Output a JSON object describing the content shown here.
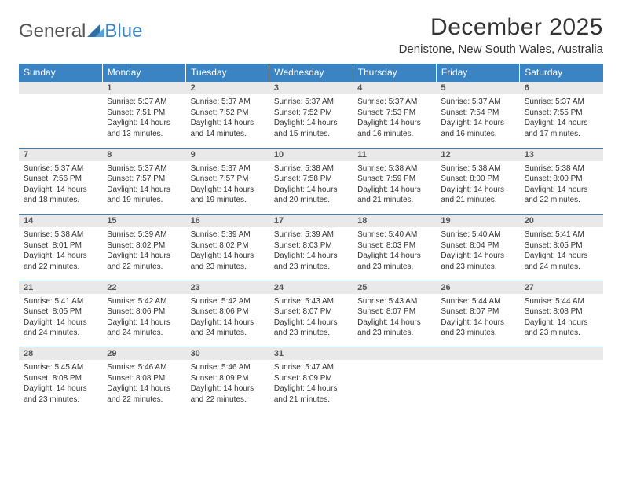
{
  "logo": {
    "general": "General",
    "blue": "Blue"
  },
  "title": "December 2025",
  "location": "Denistone, New South Wales, Australia",
  "colors": {
    "header_bg": "#3b84c4",
    "daynum_bg": "#e9e9e9",
    "text": "#333333",
    "logo_gray": "#555555",
    "logo_blue": "#3b84c4"
  },
  "day_headers": [
    "Sunday",
    "Monday",
    "Tuesday",
    "Wednesday",
    "Thursday",
    "Friday",
    "Saturday"
  ],
  "weeks": [
    [
      null,
      {
        "n": "1",
        "sr": "5:37 AM",
        "ss": "7:51 PM",
        "dl": "14 hours and 13 minutes."
      },
      {
        "n": "2",
        "sr": "5:37 AM",
        "ss": "7:52 PM",
        "dl": "14 hours and 14 minutes."
      },
      {
        "n": "3",
        "sr": "5:37 AM",
        "ss": "7:52 PM",
        "dl": "14 hours and 15 minutes."
      },
      {
        "n": "4",
        "sr": "5:37 AM",
        "ss": "7:53 PM",
        "dl": "14 hours and 16 minutes."
      },
      {
        "n": "5",
        "sr": "5:37 AM",
        "ss": "7:54 PM",
        "dl": "14 hours and 16 minutes."
      },
      {
        "n": "6",
        "sr": "5:37 AM",
        "ss": "7:55 PM",
        "dl": "14 hours and 17 minutes."
      }
    ],
    [
      {
        "n": "7",
        "sr": "5:37 AM",
        "ss": "7:56 PM",
        "dl": "14 hours and 18 minutes."
      },
      {
        "n": "8",
        "sr": "5:37 AM",
        "ss": "7:57 PM",
        "dl": "14 hours and 19 minutes."
      },
      {
        "n": "9",
        "sr": "5:37 AM",
        "ss": "7:57 PM",
        "dl": "14 hours and 19 minutes."
      },
      {
        "n": "10",
        "sr": "5:38 AM",
        "ss": "7:58 PM",
        "dl": "14 hours and 20 minutes."
      },
      {
        "n": "11",
        "sr": "5:38 AM",
        "ss": "7:59 PM",
        "dl": "14 hours and 21 minutes."
      },
      {
        "n": "12",
        "sr": "5:38 AM",
        "ss": "8:00 PM",
        "dl": "14 hours and 21 minutes."
      },
      {
        "n": "13",
        "sr": "5:38 AM",
        "ss": "8:00 PM",
        "dl": "14 hours and 22 minutes."
      }
    ],
    [
      {
        "n": "14",
        "sr": "5:38 AM",
        "ss": "8:01 PM",
        "dl": "14 hours and 22 minutes."
      },
      {
        "n": "15",
        "sr": "5:39 AM",
        "ss": "8:02 PM",
        "dl": "14 hours and 22 minutes."
      },
      {
        "n": "16",
        "sr": "5:39 AM",
        "ss": "8:02 PM",
        "dl": "14 hours and 23 minutes."
      },
      {
        "n": "17",
        "sr": "5:39 AM",
        "ss": "8:03 PM",
        "dl": "14 hours and 23 minutes."
      },
      {
        "n": "18",
        "sr": "5:40 AM",
        "ss": "8:03 PM",
        "dl": "14 hours and 23 minutes."
      },
      {
        "n": "19",
        "sr": "5:40 AM",
        "ss": "8:04 PM",
        "dl": "14 hours and 23 minutes."
      },
      {
        "n": "20",
        "sr": "5:41 AM",
        "ss": "8:05 PM",
        "dl": "14 hours and 24 minutes."
      }
    ],
    [
      {
        "n": "21",
        "sr": "5:41 AM",
        "ss": "8:05 PM",
        "dl": "14 hours and 24 minutes."
      },
      {
        "n": "22",
        "sr": "5:42 AM",
        "ss": "8:06 PM",
        "dl": "14 hours and 24 minutes."
      },
      {
        "n": "23",
        "sr": "5:42 AM",
        "ss": "8:06 PM",
        "dl": "14 hours and 24 minutes."
      },
      {
        "n": "24",
        "sr": "5:43 AM",
        "ss": "8:07 PM",
        "dl": "14 hours and 23 minutes."
      },
      {
        "n": "25",
        "sr": "5:43 AM",
        "ss": "8:07 PM",
        "dl": "14 hours and 23 minutes."
      },
      {
        "n": "26",
        "sr": "5:44 AM",
        "ss": "8:07 PM",
        "dl": "14 hours and 23 minutes."
      },
      {
        "n": "27",
        "sr": "5:44 AM",
        "ss": "8:08 PM",
        "dl": "14 hours and 23 minutes."
      }
    ],
    [
      {
        "n": "28",
        "sr": "5:45 AM",
        "ss": "8:08 PM",
        "dl": "14 hours and 23 minutes."
      },
      {
        "n": "29",
        "sr": "5:46 AM",
        "ss": "8:08 PM",
        "dl": "14 hours and 22 minutes."
      },
      {
        "n": "30",
        "sr": "5:46 AM",
        "ss": "8:09 PM",
        "dl": "14 hours and 22 minutes."
      },
      {
        "n": "31",
        "sr": "5:47 AM",
        "ss": "8:09 PM",
        "dl": "14 hours and 21 minutes."
      },
      null,
      null,
      null
    ]
  ],
  "labels": {
    "sunrise": "Sunrise:",
    "sunset": "Sunset:",
    "daylight": "Daylight:"
  }
}
